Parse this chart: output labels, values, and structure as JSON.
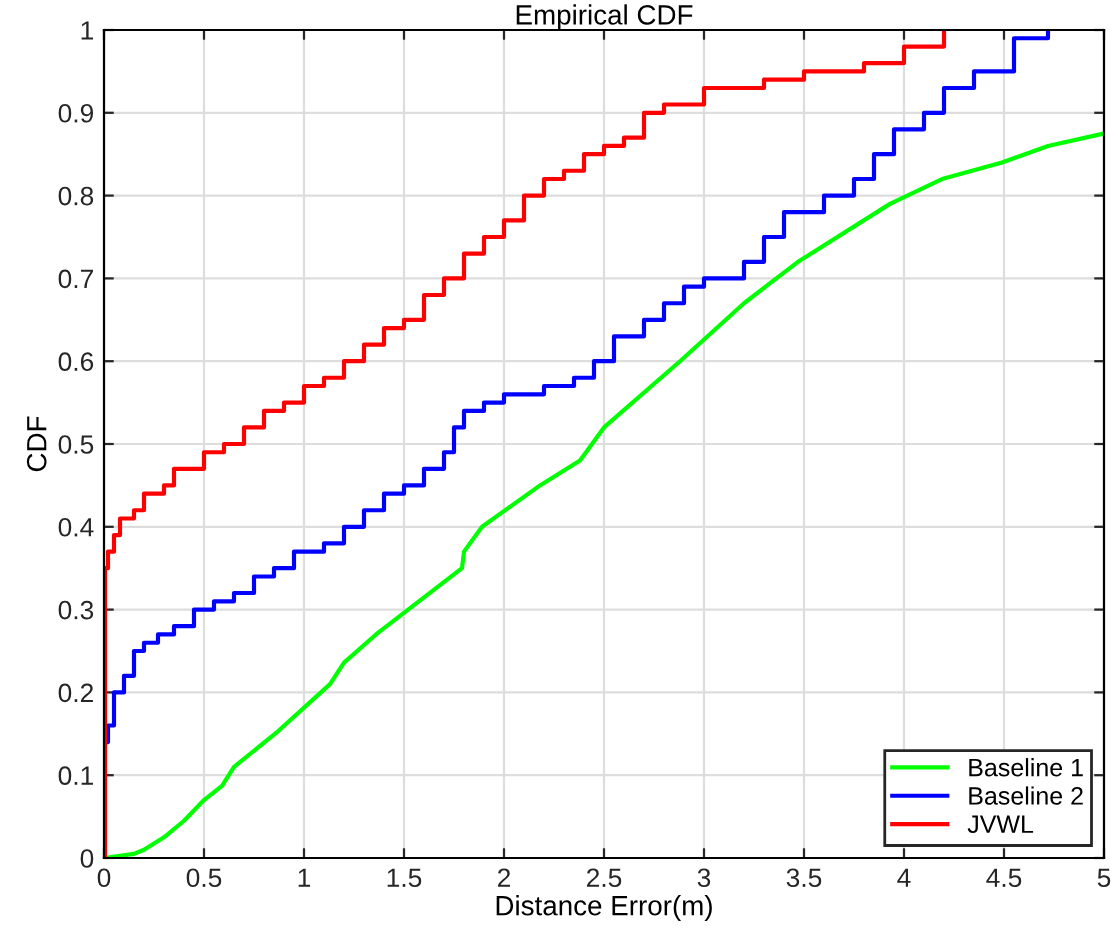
{
  "chart_data": {
    "type": "line",
    "title": "Empirical CDF",
    "xlabel": "Distance Error(m)",
    "ylabel": "CDF",
    "xlim": [
      0,
      5
    ],
    "ylim": [
      0,
      1
    ],
    "xticks": [
      0,
      0.5,
      1,
      1.5,
      2,
      2.5,
      3,
      3.5,
      4,
      4.5,
      5
    ],
    "yticks": [
      0,
      0.1,
      0.2,
      0.3,
      0.4,
      0.5,
      0.6,
      0.7,
      0.8,
      0.9,
      1
    ],
    "grid": true,
    "legend": "bottom right",
    "series": [
      {
        "name": "Baseline 1",
        "color": "#00ff00",
        "x": [
          0,
          0.15,
          0.2,
          0.3,
          0.4,
          0.5,
          0.59,
          0.65,
          0.87,
          1.13,
          1.2,
          1.36,
          1.79,
          1.8,
          1.89,
          2.18,
          2.38,
          2.5,
          2.88,
          3.2,
          3.47,
          3.93,
          4.19,
          4.49,
          4.72,
          5
        ],
        "values": [
          0,
          0.005,
          0.01,
          0.025,
          0.045,
          0.07,
          0.087,
          0.11,
          0.153,
          0.21,
          0.236,
          0.27,
          0.35,
          0.37,
          0.4,
          0.45,
          0.48,
          0.52,
          0.6,
          0.67,
          0.72,
          0.79,
          0.82,
          0.84,
          0.86,
          0.875
        ]
      },
      {
        "name": "Baseline 2",
        "color": "#0000ff",
        "type": "step",
        "x": [
          0,
          0.02,
          0.05,
          0.1,
          0.15,
          0.2,
          0.27,
          0.35,
          0.45,
          0.55,
          0.65,
          0.75,
          0.85,
          0.95,
          1.1,
          1.2,
          1.3,
          1.4,
          1.5,
          1.6,
          1.7,
          1.75,
          1.8,
          1.9,
          2.0,
          2.2,
          2.35,
          2.45,
          2.55,
          2.7,
          2.8,
          2.9,
          3.0,
          3.2,
          3.3,
          3.4,
          3.6,
          3.75,
          3.85,
          3.95,
          4.1,
          4.2,
          4.35,
          4.55,
          4.72
        ],
        "values": [
          0.14,
          0.16,
          0.2,
          0.22,
          0.25,
          0.26,
          0.27,
          0.28,
          0.3,
          0.31,
          0.32,
          0.34,
          0.35,
          0.37,
          0.38,
          0.4,
          0.42,
          0.44,
          0.45,
          0.47,
          0.49,
          0.52,
          0.54,
          0.55,
          0.56,
          0.57,
          0.58,
          0.6,
          0.63,
          0.65,
          0.67,
          0.69,
          0.7,
          0.72,
          0.75,
          0.78,
          0.8,
          0.82,
          0.85,
          0.88,
          0.9,
          0.93,
          0.95,
          0.99,
          1.0
        ]
      },
      {
        "name": "JVWL",
        "color": "#ff0000",
        "type": "step",
        "x": [
          0,
          0.005,
          0.02,
          0.05,
          0.08,
          0.15,
          0.2,
          0.3,
          0.35,
          0.5,
          0.6,
          0.7,
          0.8,
          0.9,
          1.0,
          1.1,
          1.2,
          1.3,
          1.4,
          1.5,
          1.6,
          1.7,
          1.8,
          1.9,
          2.0,
          2.1,
          2.2,
          2.3,
          2.4,
          2.5,
          2.6,
          2.7,
          2.8,
          3.0,
          3.3,
          3.5,
          3.8,
          4.0,
          4.2
        ],
        "values": [
          0,
          0.35,
          0.37,
          0.39,
          0.41,
          0.42,
          0.44,
          0.45,
          0.47,
          0.49,
          0.5,
          0.52,
          0.54,
          0.55,
          0.57,
          0.58,
          0.6,
          0.62,
          0.64,
          0.65,
          0.68,
          0.7,
          0.73,
          0.75,
          0.77,
          0.8,
          0.82,
          0.83,
          0.85,
          0.86,
          0.87,
          0.9,
          0.91,
          0.93,
          0.94,
          0.95,
          0.96,
          0.98,
          1.0
        ]
      }
    ]
  }
}
